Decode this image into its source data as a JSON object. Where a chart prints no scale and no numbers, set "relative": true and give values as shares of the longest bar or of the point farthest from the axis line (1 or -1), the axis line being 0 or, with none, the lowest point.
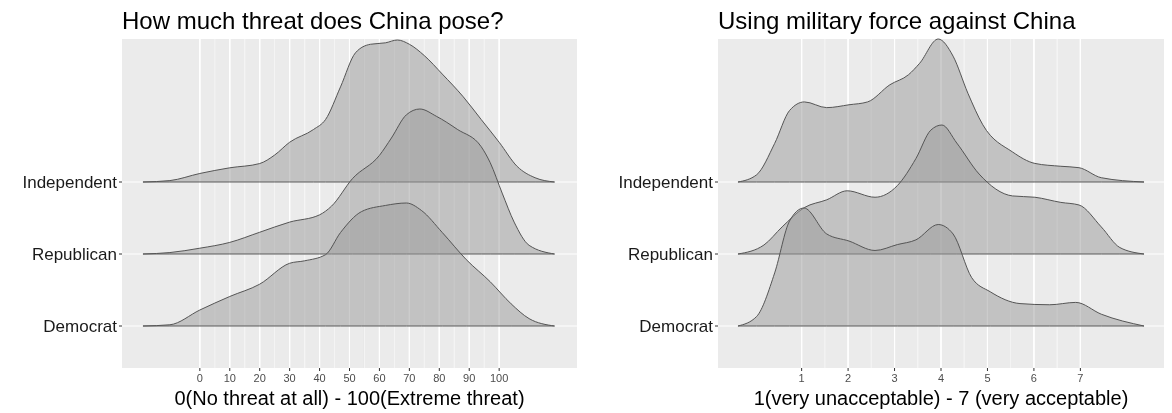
{
  "chart_data": [
    {
      "type": "area",
      "title": "How much threat does China pose?",
      "relative": true,
      "grid": true,
      "tick_labels": false,
      "xlim": [
        -26,
        126
      ],
      "xticks": [
        0,
        10,
        20,
        30,
        40,
        50,
        60,
        70,
        80,
        90,
        100
      ],
      "series": [
        {
          "name": "Independent",
          "color": "#999999",
          "x": [
            -19,
            -10,
            0,
            10,
            20,
            25,
            30,
            38,
            42,
            47,
            52,
            57,
            62,
            66,
            70,
            75,
            81,
            88,
            94,
            100,
            106,
            112,
            118.5
          ],
          "values": [
            0,
            0.01,
            0.06,
            0.1,
            0.13,
            0.19,
            0.28,
            0.37,
            0.44,
            0.67,
            0.91,
            0.97,
            0.98,
            1,
            0.97,
            0.89,
            0.76,
            0.6,
            0.44,
            0.28,
            0.11,
            0.03,
            0
          ]
        }
      ]
    },
    {
      "type": "area",
      "relative": true,
      "grid": true,
      "tick_labels": false,
      "xlim": [
        -26,
        126
      ],
      "xticks": [
        0,
        10,
        20,
        30,
        40,
        50,
        60,
        70,
        80,
        90,
        100
      ],
      "series": [
        {
          "name": "Republican",
          "color": "#999999",
          "x": [
            -19,
            -10,
            0,
            10,
            20,
            30,
            40,
            44,
            51,
            60,
            64,
            69,
            73.5,
            79,
            86,
            94,
            97,
            101,
            105,
            110,
            118.5
          ],
          "values": [
            0,
            0.01,
            0.04,
            0.08,
            0.15,
            0.22,
            0.27,
            0.33,
            0.52,
            0.68,
            0.8,
            0.96,
            1,
            0.95,
            0.86,
            0.74,
            0.63,
            0.42,
            0.22,
            0.06,
            0
          ]
        }
      ]
    },
    {
      "type": "area",
      "xlabel": "0(No threat at all) - 100(Extreme threat)",
      "relative": true,
      "grid": true,
      "tick_labels": "x",
      "xlim": [
        -26,
        126
      ],
      "xticks": [
        0,
        10,
        20,
        30,
        40,
        50,
        60,
        70,
        80,
        90,
        100
      ],
      "series": [
        {
          "name": "Democrat",
          "color": "#999999",
          "x": [
            -19,
            -10,
            0,
            10,
            20,
            30,
            35,
            42,
            47,
            54,
            62,
            69,
            74,
            81,
            89,
            97,
            104,
            110,
            118.5
          ],
          "values": [
            0,
            0.01,
            0.13,
            0.24,
            0.34,
            0.51,
            0.53,
            0.58,
            0.76,
            0.93,
            0.98,
            1,
            0.94,
            0.76,
            0.54,
            0.36,
            0.18,
            0.06,
            0
          ]
        }
      ]
    },
    {
      "type": "area",
      "title": "Using military force against China",
      "relative": true,
      "grid": true,
      "tick_labels": false,
      "xlim": [
        -0.8,
        8.8
      ],
      "xticks": [
        1,
        2,
        3,
        4,
        5,
        6,
        7
      ],
      "series": [
        {
          "name": "Independent",
          "color": "#999999",
          "x": [
            -0.37,
            0.03,
            0.42,
            0.74,
            1.06,
            1.54,
            2.02,
            2.42,
            2.9,
            3.3,
            3.54,
            3.94,
            4.26,
            4.58,
            4.9,
            5.54,
            6.02,
            6.58,
            6.97,
            7.45,
            8.37
          ],
          "values": [
            0,
            0.05,
            0.27,
            0.5,
            0.56,
            0.52,
            0.54,
            0.56,
            0.68,
            0.75,
            0.83,
            1,
            0.88,
            0.62,
            0.4,
            0.21,
            0.13,
            0.11,
            0.1,
            0.03,
            0
          ]
        }
      ]
    },
    {
      "type": "area",
      "relative": true,
      "grid": true,
      "tick_labels": false,
      "xlim": [
        -0.8,
        8.8
      ],
      "xticks": [
        1,
        2,
        3,
        4,
        5,
        6,
        7
      ],
      "series": [
        {
          "name": "Republican",
          "color": "#999999",
          "x": [
            -0.37,
            0.19,
            0.58,
            1.06,
            1.54,
            1.98,
            2.58,
            3.06,
            3.46,
            3.78,
            4.02,
            4.34,
            4.82,
            5.54,
            6.02,
            6.58,
            6.97,
            7.45,
            7.85,
            8.37
          ],
          "values": [
            0,
            0.07,
            0.21,
            0.36,
            0.42,
            0.49,
            0.44,
            0.53,
            0.74,
            0.96,
            1,
            0.86,
            0.62,
            0.45,
            0.44,
            0.4,
            0.38,
            0.21,
            0.05,
            0
          ]
        }
      ]
    },
    {
      "type": "area",
      "xlabel": "1(very unacceptable) - 7 (very acceptable)",
      "relative": true,
      "grid": true,
      "tick_labels": "x",
      "xlim": [
        -0.8,
        8.8
      ],
      "xticks": [
        1,
        2,
        3,
        4,
        5,
        6,
        7
      ],
      "series": [
        {
          "name": "Democrat",
          "color": "#999999",
          "x": [
            -0.37,
            0.03,
            0.42,
            0.74,
            1.05,
            1.54,
            2.02,
            2.58,
            3.06,
            3.46,
            3.94,
            4.26,
            4.66,
            5.06,
            5.7,
            6.34,
            6.9,
            7.45,
            8.37
          ],
          "values": [
            0,
            0.08,
            0.45,
            0.89,
            1,
            0.78,
            0.72,
            0.64,
            0.69,
            0.73,
            0.86,
            0.78,
            0.41,
            0.29,
            0.19,
            0.18,
            0.2,
            0.1,
            0
          ]
        }
      ]
    }
  ]
}
